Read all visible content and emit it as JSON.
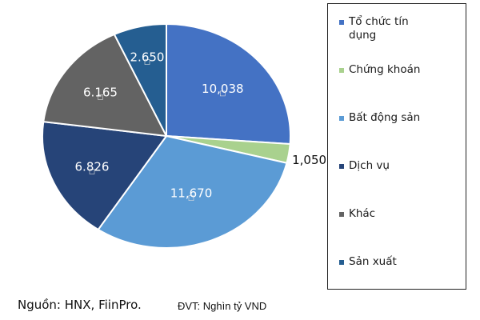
{
  "chart_data": {
    "type": "pie",
    "categories": [
      "Tổ chức tín dụng",
      "Chứng khoán",
      "Bất động sản",
      "Dịch vụ",
      "Khác",
      "Sản xuất"
    ],
    "values": [
      10038,
      1050,
      11670,
      6826,
      6165,
      2650
    ],
    "value_labels": [
      "10,038",
      "1,050",
      "11,670",
      "6.826",
      "6.165",
      "2.650"
    ],
    "colors": [
      "#4472C4",
      "#A9D18E",
      "#5B9BD5",
      "#264478",
      "#636363",
      "#255E91"
    ],
    "label_colors": [
      "#ffffff",
      "#111111",
      "#ffffff",
      "#ffffff",
      "#ffffff",
      "#ffffff"
    ],
    "legend": "right",
    "start_angle_deg": 0,
    "direction": "clockwise"
  },
  "legend": {
    "items": [
      "Tổ chức tín\ndụng",
      "Chứng khoán",
      "Bất động sản",
      "Dịch vụ",
      "Khác",
      "Sản xuất"
    ]
  },
  "footer": {
    "source": "Nguồn: HNX, FiinPro.",
    "unit": "ĐVT: Nghìn tỷ VND"
  }
}
